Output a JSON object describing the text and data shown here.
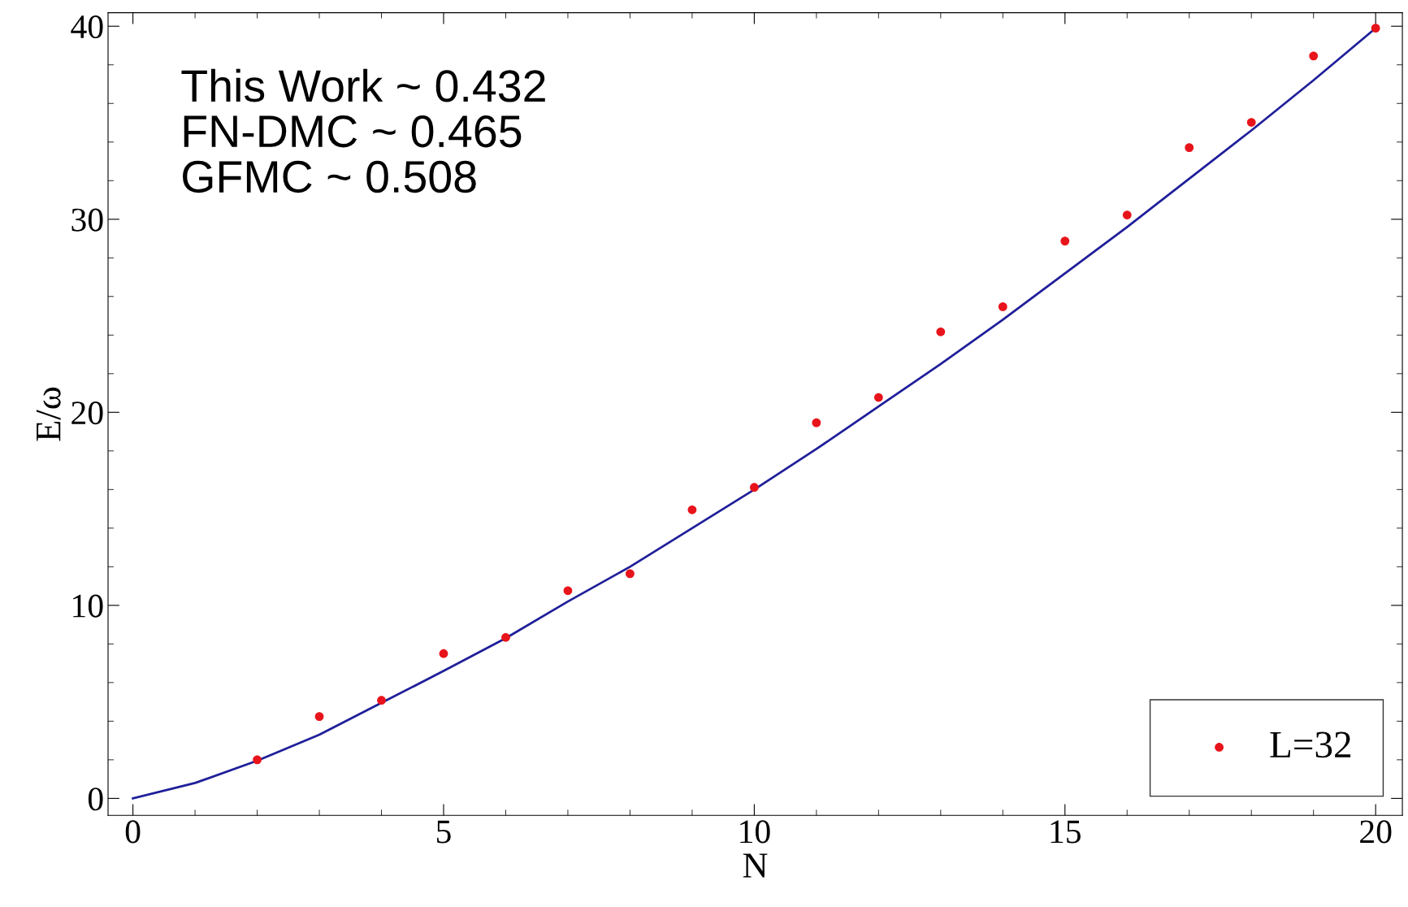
{
  "chart_data": {
    "type": "scatter",
    "xlabel": "N",
    "ylabel": "E/ω",
    "xlim": [
      -0.4,
      20.43
    ],
    "ylim": [
      -0.88,
      40.7
    ],
    "xticks": [
      0,
      5,
      10,
      15,
      20
    ],
    "yticks": [
      0,
      10,
      20,
      30,
      40
    ],
    "grid": false,
    "legend": "bottom right",
    "annotations": [
      "This Work ~ 0.432\nFN-DMC ~ 0.465\nGFMC ~ 0.508"
    ],
    "series": [
      {
        "name": "L=32",
        "marker": "circle",
        "color": "#e8141b",
        "x": [
          2,
          3,
          4,
          5,
          6,
          7,
          8,
          9,
          10,
          11,
          12,
          13,
          14,
          15,
          16,
          17,
          18,
          19,
          20
        ],
        "values": [
          2.0,
          4.24,
          5.08,
          7.5,
          8.34,
          10.76,
          11.64,
          14.95,
          16.11,
          19.46,
          20.77,
          24.17,
          25.47,
          28.87,
          30.22,
          33.71,
          35.02,
          38.46,
          39.9
        ]
      },
      {
        "type": "line",
        "marker": "none",
        "color": "#1f1f9a",
        "line_style": "solid",
        "x": [
          0,
          1,
          2,
          3,
          4,
          5,
          6,
          7,
          8,
          9,
          10,
          11,
          12,
          13,
          14,
          15,
          16,
          17,
          18,
          19,
          20
        ],
        "values": [
          0,
          0.8,
          1.95,
          3.3,
          4.95,
          6.6,
          8.3,
          10.2,
          12.0,
          14.0,
          16.0,
          18.1,
          20.3,
          22.5,
          24.8,
          27.2,
          29.6,
          32.1,
          34.6,
          37.2,
          39.9
        ]
      }
    ]
  }
}
